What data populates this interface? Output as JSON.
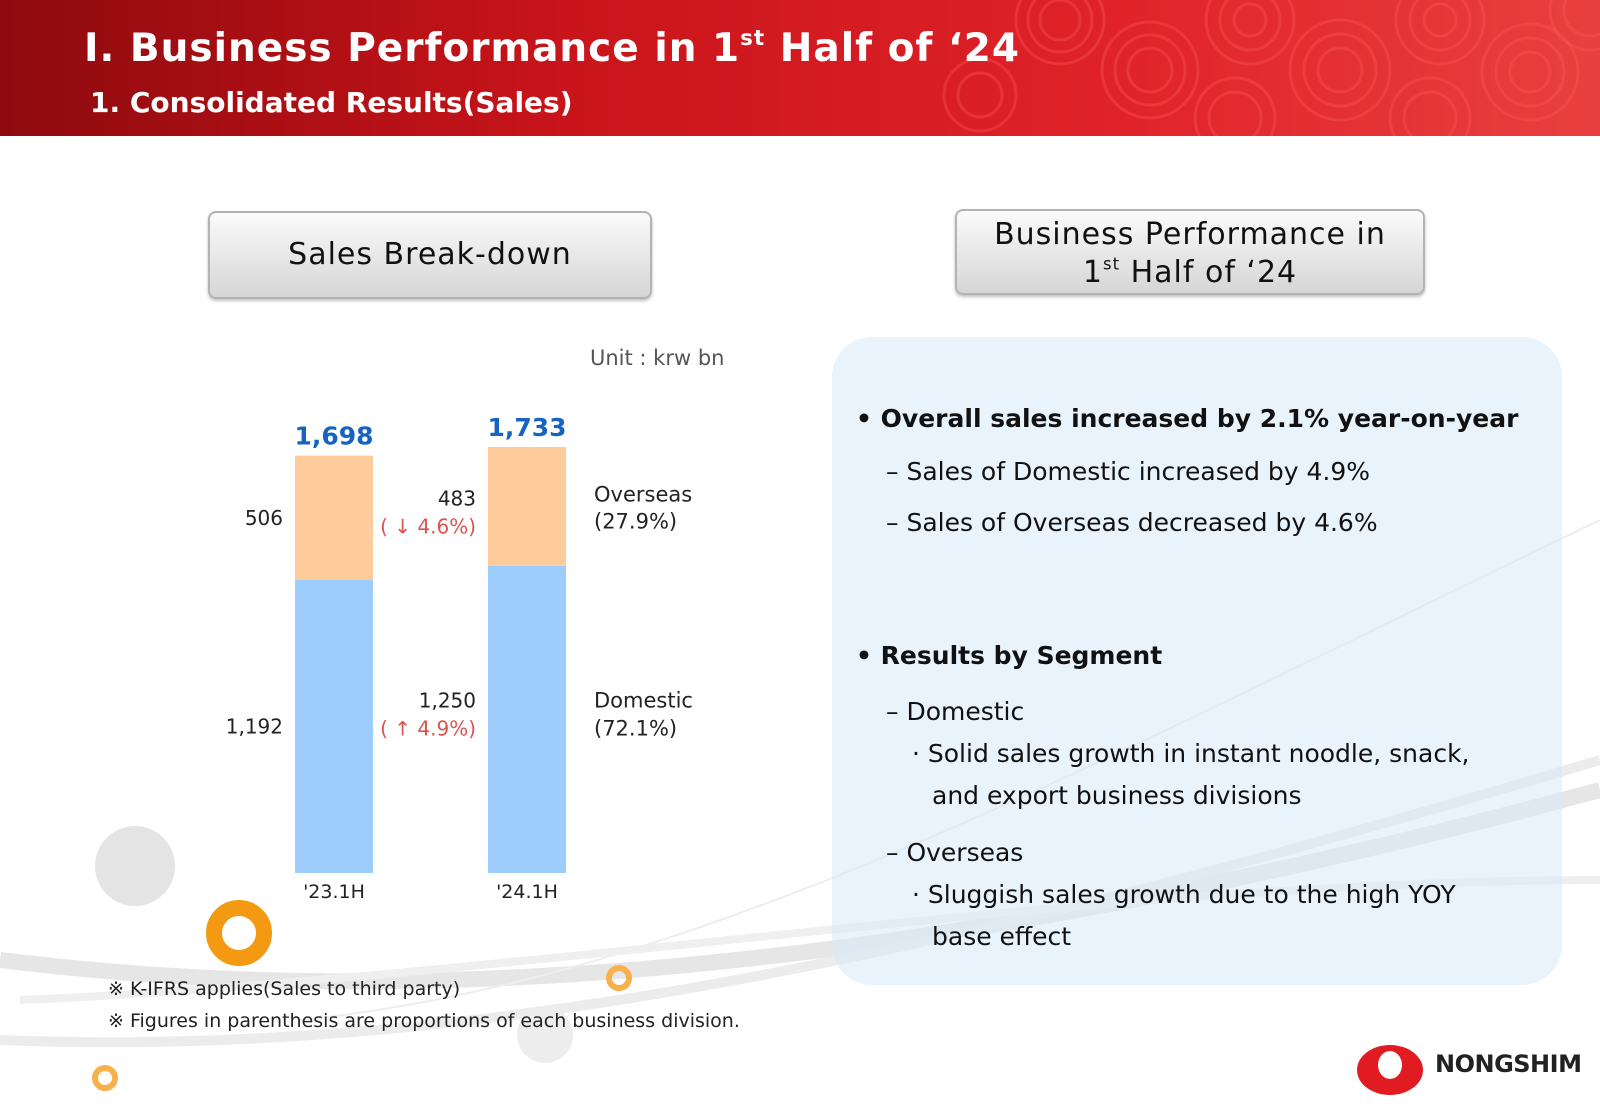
{
  "header": {
    "title": "Ⅰ. Business Performance in 1",
    "title_sup": "st",
    "title_end": " Half of ‘24",
    "subtitle": "1. Consolidated Results(Sales)"
  },
  "left_box": {
    "label": "Sales Break-down"
  },
  "right_box": {
    "line1": "Business Performance in",
    "line2_pre": "1",
    "line2_sup": "st",
    "line2_end": " Half of ‘24"
  },
  "unit_label": "Unit  : krw bn",
  "chart_data": {
    "type": "bar",
    "stacked": true,
    "categories": [
      "'23.1H",
      "'24.1H"
    ],
    "series": [
      {
        "name": "Domestic",
        "values": [
          1192,
          1250
        ],
        "color": "#9ccdfc"
      },
      {
        "name": "Overseas",
        "values": [
          506,
          483
        ],
        "color": "#fecb9a"
      }
    ],
    "totals": [
      "1,698",
      "1,733"
    ],
    "value_labels": {
      "domestic": [
        "1,192",
        "1,250"
      ],
      "overseas": [
        "506",
        "483"
      ]
    },
    "change_labels": {
      "domestic": "( ↑ 4.9%)",
      "overseas": "( ↓ 4.6%)"
    },
    "legend": [
      {
        "name": "Overseas",
        "share": "(27.9%)"
      },
      {
        "name": "Domestic",
        "share": "(72.1%)"
      }
    ],
    "ylim": [
      0,
      1733
    ],
    "colors": {
      "total_label": "#1565c0",
      "change_label": "#d9534f"
    }
  },
  "summary": {
    "p1": "• Overall sales increased by 2.1% year-on-year",
    "p1a": "– Sales of Domestic increased by 4.9%",
    "p1b": "– Sales of Overseas decreased by 4.6%",
    "p2": "• Results by Segment",
    "d_head": "– Domestic",
    "d1": "· Solid sales growth in instant noodle, snack,",
    "d2": "and export business divisions",
    "o_head": "– Overseas",
    "o1": "· Sluggish sales growth due to the high YOY",
    "o2": "base effect"
  },
  "notes": [
    "※ K-IFRS applies(Sales to third party)",
    "※ Figures in parenthesis are proportions of each business division."
  ],
  "logo": {
    "text": "NONGSHIM",
    "color": "#e11b22"
  }
}
